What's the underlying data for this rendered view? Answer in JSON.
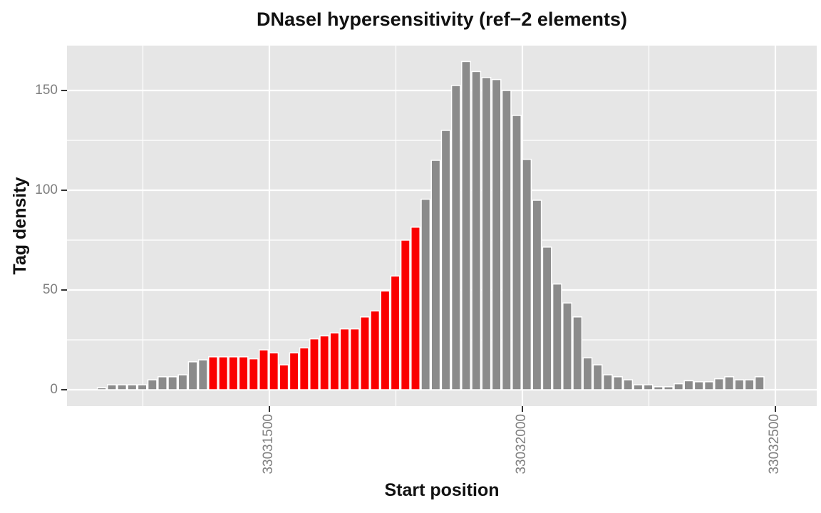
{
  "title": "DNaseI hypersensitivity (ref−2 elements)",
  "x_axis": {
    "label": "Start position",
    "tick_labels": [
      "33031500",
      "33032000",
      "33032500"
    ],
    "tick_values": [
      33031500,
      33032000,
      33032500
    ],
    "minor_tick_values": [
      33031250,
      33031750,
      33032250
    ]
  },
  "y_axis": {
    "label": "Tag density",
    "tick_labels": [
      "0",
      "50",
      "100",
      "150"
    ],
    "tick_values": [
      0,
      50,
      100,
      150
    ],
    "minor_tick_values": [
      25,
      75,
      125
    ]
  },
  "chart_data": {
    "type": "bar",
    "subtype": "histogram",
    "title": "DNaseI hypersensitivity (ref−2 elements)",
    "xlabel": "Start position",
    "ylabel": "Tag density",
    "bin_start": 33031160,
    "bin_width_bp": 20,
    "values": [
      1,
      2.5,
      2.5,
      2.5,
      2.5,
      5,
      6.5,
      6.5,
      7.5,
      14,
      15,
      16.5,
      16.5,
      16.5,
      16.5,
      15.5,
      20,
      18.5,
      12.5,
      18.5,
      21,
      25.5,
      27,
      28.5,
      30.5,
      30.5,
      36.5,
      39.5,
      49.5,
      57,
      75,
      81.5,
      95.5,
      115,
      130,
      152.5,
      164.5,
      159.5,
      156.5,
      155.5,
      150,
      137.5,
      115.5,
      95,
      71.5,
      53,
      43.5,
      36.5,
      16,
      12.5,
      7.5,
      6.5,
      5,
      2.5,
      2.5,
      1.5,
      1.5,
      3,
      4.5,
      4,
      4,
      5.5,
      6.5,
      5,
      5,
      6.5
    ],
    "highlight_start_index": 11,
    "highlight_end_index": 31,
    "xlim": [
      33031100,
      33032580
    ],
    "ylim": [
      0,
      172.5
    ],
    "grid": true,
    "legend": false,
    "colors": {
      "bar_fill": "#8B8B8B",
      "highlight_fill": "#FA0000",
      "bar_stroke": "#FFFFFF",
      "panel_background": "#E6E6E6",
      "gridline": "#FFFFFF",
      "tick_text": "#7F7F7F",
      "tick_mark": "#333333",
      "title_text": "#111111"
    }
  }
}
